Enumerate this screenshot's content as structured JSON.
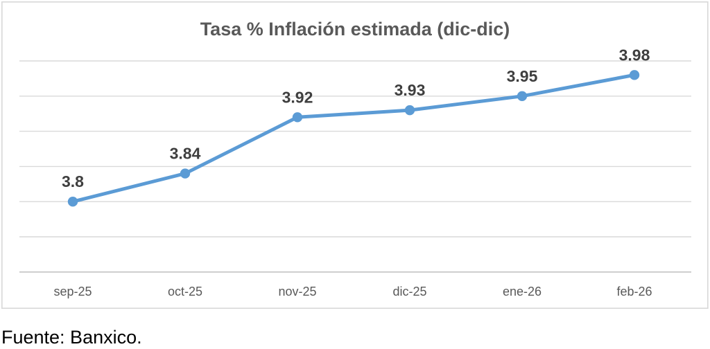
{
  "source_note": "Fuente: Banxico.",
  "chart_data": {
    "type": "line",
    "title": "Tasa % Inflación estimada (dic-dic)",
    "categories": [
      "sep-25",
      "oct-25",
      "nov-25",
      "dic-25",
      "ene-26",
      "feb-26"
    ],
    "series": [
      {
        "name": "Tasa % Inflación estimada (dic-dic)",
        "values": [
          3.8,
          3.84,
          3.92,
          3.93,
          3.95,
          3.98
        ],
        "point_labels": [
          "3.8",
          "3.84",
          "3.92",
          "3.93",
          "3.95",
          "3.98"
        ]
      }
    ],
    "xlabel": "",
    "ylabel": "",
    "ylim": [
      3.7,
      4.0
    ],
    "grid_step": 0.05,
    "grid": true,
    "legend": "none",
    "y_axis_labels_visible": false,
    "data_labels_position": "above",
    "colors": {
      "line": "#5B9BD5",
      "marker": "#5B9BD5",
      "title": "#595959",
      "data_label": "#3F3F3F",
      "category_label": "#595959",
      "gridline": "#D9D9D9",
      "axis_line": "#C3C3C3",
      "chart_border": "#D9D9D9",
      "background": "#FFFFFF"
    }
  }
}
